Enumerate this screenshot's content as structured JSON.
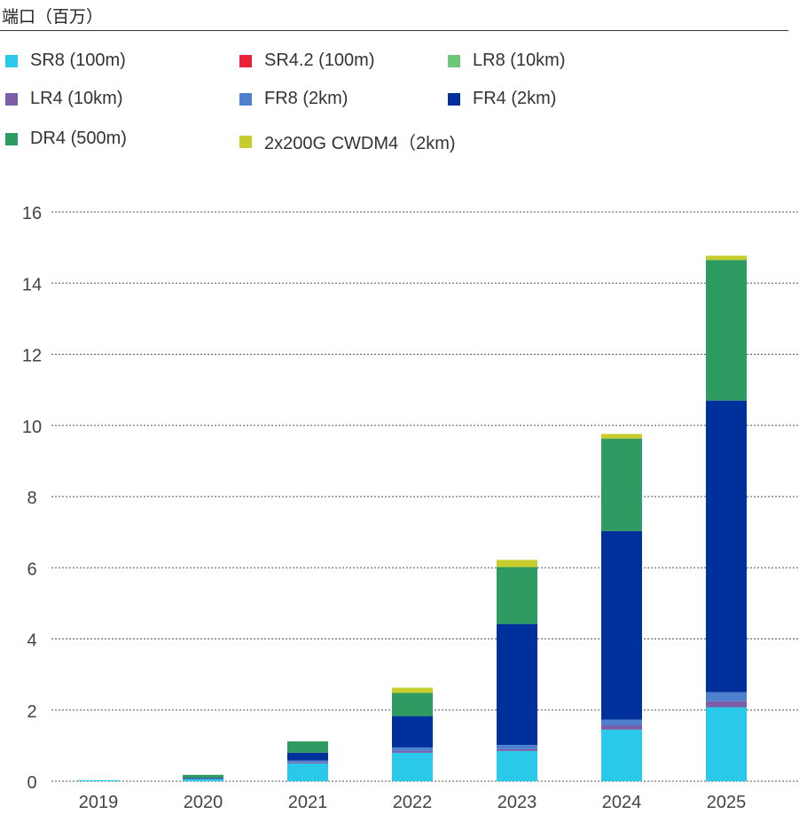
{
  "page": {
    "title": "端口（百万）"
  },
  "chart_data": {
    "type": "bar",
    "stacked": true,
    "title": "端口（百万）",
    "xlabel": "",
    "ylabel": "",
    "ylim": [
      0,
      16
    ],
    "yticks": [
      0,
      2,
      4,
      6,
      8,
      10,
      12,
      14,
      16
    ],
    "grid": true,
    "legend": "top",
    "categories": [
      "2019",
      "2020",
      "2021",
      "2022",
      "2023",
      "2024",
      "2025"
    ],
    "series": [
      {
        "name": "SR8 (100m)",
        "color": "#2ac9ea",
        "values": [
          0.03,
          0.05,
          0.5,
          0.8,
          0.85,
          1.45,
          2.08
        ]
      },
      {
        "name": "SR4.2 (100m)",
        "color": "#e8203a",
        "values": [
          0,
          0,
          0,
          0,
          0,
          0,
          0
        ]
      },
      {
        "name": "LR8 (10km)",
        "color": "#6cc779",
        "values": [
          0,
          0,
          0,
          0,
          0,
          0,
          0
        ]
      },
      {
        "name": "LR4 (10km)",
        "color": "#7b5ea7",
        "values": [
          0,
          0,
          0.03,
          0.05,
          0.05,
          0.12,
          0.17
        ]
      },
      {
        "name": "FR8 (2km)",
        "color": "#4e80d0",
        "values": [
          0,
          0.02,
          0.05,
          0.1,
          0.12,
          0.16,
          0.25
        ]
      },
      {
        "name": "FR4 (2km)",
        "color": "#00309c",
        "values": [
          0,
          0.02,
          0.22,
          0.88,
          3.4,
          5.3,
          8.2
        ]
      },
      {
        "name": "DR4 (500m)",
        "color": "#2e9b62",
        "values": [
          0,
          0.09,
          0.32,
          0.65,
          1.6,
          2.6,
          3.95
        ]
      },
      {
        "name": "2x200G CWDM4（2km)",
        "color": "#c8cd2e",
        "values": [
          0,
          0,
          0,
          0.15,
          0.2,
          0.13,
          0.12
        ]
      }
    ]
  }
}
